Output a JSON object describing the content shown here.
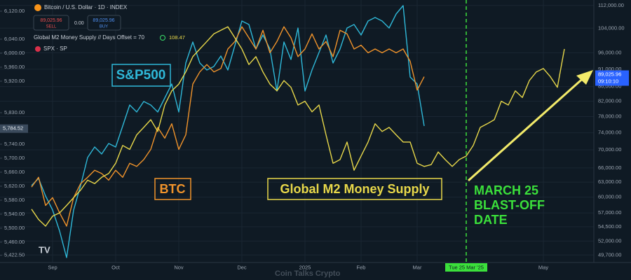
{
  "chart_data": {
    "type": "line",
    "title": "Bitcoin / U.S. Dollar · 1D · INDEX",
    "header": {
      "sell_price": "89,025.96",
      "sell_label": "SELL",
      "spread": "0.00",
      "buy_price": "89,025.96",
      "buy_label": "BUY",
      "m2_legend": "Global M2 Money Supply // Days Offset = 70",
      "m2_last": "108.47",
      "spx_legend": "SPX · SP"
    },
    "annotations": {
      "spx": "S&P500",
      "btc": "BTC",
      "m2": "Global M2 Money Supply",
      "event": [
        "MARCH 25",
        "BLAST-OFF",
        "DATE"
      ],
      "watermark": "Coin Talks Crypto"
    },
    "categories": [
      null,
      null,
      null,
      "Sep",
      null,
      null,
      null,
      null,
      null,
      null,
      null,
      null,
      "Oct",
      null,
      null,
      null,
      null,
      null,
      null,
      null,
      null,
      "Nov",
      null,
      null,
      null,
      null,
      null,
      null,
      null,
      null,
      "Dec",
      null,
      null,
      null,
      null,
      null,
      null,
      null,
      null,
      "2025",
      null,
      null,
      null,
      null,
      null,
      null,
      null,
      "Feb",
      null,
      null,
      null,
      null,
      null,
      null,
      null,
      "Mar",
      null,
      null,
      null,
      null,
      null,
      null,
      "Tue 25 Mar '25",
      null,
      null,
      null,
      null,
      null,
      null,
      null,
      null,
      null,
      null,
      "May",
      null,
      null,
      null,
      null,
      null,
      null
    ],
    "crosshair_index": 62,
    "series": [
      {
        "name": "SPX",
        "color": "#2fb8d8",
        "axis": "y",
        "values": [
          5622,
          5642,
          5592,
          5552,
          5492,
          5416,
          5552,
          5622,
          5702,
          5732,
          5712,
          5742,
          5732,
          5792,
          5852,
          5832,
          5862,
          5852,
          5832,
          5872,
          5912,
          5832,
          5972,
          6032,
          5972,
          5952,
          5962,
          5992,
          5952,
          6022,
          6092,
          6082,
          6012,
          6052,
          6012,
          5892,
          6032,
          5982,
          6072,
          5892,
          5952,
          6002,
          6052,
          5972,
          6012,
          6072,
          6082,
          6052,
          6092,
          6102,
          6092,
          6072,
          6112,
          6136,
          5932,
          5912,
          5792,
          null,
          null,
          null,
          null,
          null,
          null,
          null,
          null,
          null,
          null,
          null,
          null,
          null,
          null,
          null,
          null,
          null,
          null,
          null,
          null,
          null,
          null,
          null
        ]
      },
      {
        "name": "BTC",
        "color": "#f0932b",
        "axis": "y2",
        "values": [
          62000,
          64000,
          58400,
          59900,
          57000,
          54600,
          59900,
          62700,
          64000,
          65500,
          64800,
          63400,
          65500,
          64000,
          67000,
          66300,
          67800,
          70100,
          75300,
          72700,
          76200,
          70100,
          73500,
          86700,
          90200,
          92400,
          90200,
          91200,
          97200,
          99600,
          104500,
          100800,
          97200,
          103300,
          96000,
          99600,
          104500,
          100800,
          94800,
          97200,
          102100,
          97200,
          99600,
          94800,
          103300,
          102100,
          97200,
          98400,
          96000,
          97200,
          96000,
          97200,
          96000,
          97200,
          93400,
          85000,
          88800,
          null,
          null,
          null,
          null,
          null,
          null,
          null,
          null,
          null,
          null,
          null,
          null,
          null,
          null,
          null,
          null,
          null,
          null,
          null,
          null,
          null,
          null,
          null
        ]
      },
      {
        "name": "Global M2 Money Supply",
        "color": "#e8d84a",
        "axis": "y2",
        "values": [
          57700,
          55800,
          54600,
          56400,
          57000,
          58400,
          59900,
          61400,
          63400,
          62700,
          64000,
          64800,
          67000,
          71000,
          70100,
          73500,
          75300,
          77200,
          74300,
          81000,
          84800,
          86700,
          90200,
          94800,
          97200,
          99600,
          102100,
          103300,
          104500,
          100800,
          97200,
          92400,
          94800,
          90200,
          86700,
          84800,
          87700,
          85800,
          81000,
          82000,
          79200,
          81000,
          73500,
          67000,
          67800,
          71800,
          65500,
          68600,
          71800,
          76200,
          74300,
          75300,
          73500,
          71800,
          71800,
          67000,
          66300,
          66700,
          69500,
          67800,
          66300,
          67800,
          68600,
          71000,
          75300,
          76200,
          77200,
          82000,
          81000,
          84800,
          83000,
          87700,
          90200,
          91200,
          88800,
          85800,
          97200,
          null,
          null,
          null
        ]
      }
    ],
    "ylim": [
      5402,
      6152
    ],
    "yticks": [
      {
        "value": 6120,
        "label": "6,120.00"
      },
      {
        "value": 6040,
        "label": "6,040.00"
      },
      {
        "value": 6000,
        "label": "6,000.00"
      },
      {
        "value": 5960,
        "label": "5,960.00"
      },
      {
        "value": 5920,
        "label": "5,920.00"
      },
      {
        "value": 5830,
        "label": "5,830.00"
      },
      {
        "value": 5740,
        "label": "5,740.00"
      },
      {
        "value": 5700,
        "label": "5,700.00"
      },
      {
        "value": 5660,
        "label": "5,660.00"
      },
      {
        "value": 5620,
        "label": "5,620.00"
      },
      {
        "value": 5580,
        "label": "5,580.00"
      },
      {
        "value": 5540,
        "label": "5,540.00"
      },
      {
        "value": 5500,
        "label": "5,500.00"
      },
      {
        "value": 5460,
        "label": "5,460.00"
      },
      {
        "value": 5422.5,
        "label": "5,422.50"
      }
    ],
    "y_last": {
      "value": 5784.52,
      "label": "5,784.52"
    },
    "y2lim": [
      48500,
      114000
    ],
    "y2scale": "log",
    "y2ticks": [
      {
        "value": 112000,
        "label": "112,000.00"
      },
      {
        "value": 104000,
        "label": "104,000.00"
      },
      {
        "value": 96000,
        "label": "96,000.00"
      },
      {
        "value": 91000,
        "label": "91,000.00"
      },
      {
        "value": 86000,
        "label": "86,000.00"
      },
      {
        "value": 82000,
        "label": "82,000.00"
      },
      {
        "value": 78000,
        "label": "78,000.00"
      },
      {
        "value": 74000,
        "label": "74,000.00"
      },
      {
        "value": 70000,
        "label": "70,000.00"
      },
      {
        "value": 66000,
        "label": "66,000.00"
      },
      {
        "value": 63000,
        "label": "63,000.00"
      },
      {
        "value": 60000,
        "label": "60,000.00"
      },
      {
        "value": 57000,
        "label": "57,000.00"
      },
      {
        "value": 54500,
        "label": "54,500.00"
      },
      {
        "value": 52000,
        "label": "52,000.00"
      },
      {
        "value": 49700,
        "label": "49,700.00"
      }
    ],
    "y2_last": {
      "value": 89025.96,
      "label": "89,025.96",
      "countdown": "09:10:10"
    },
    "grid": true
  }
}
